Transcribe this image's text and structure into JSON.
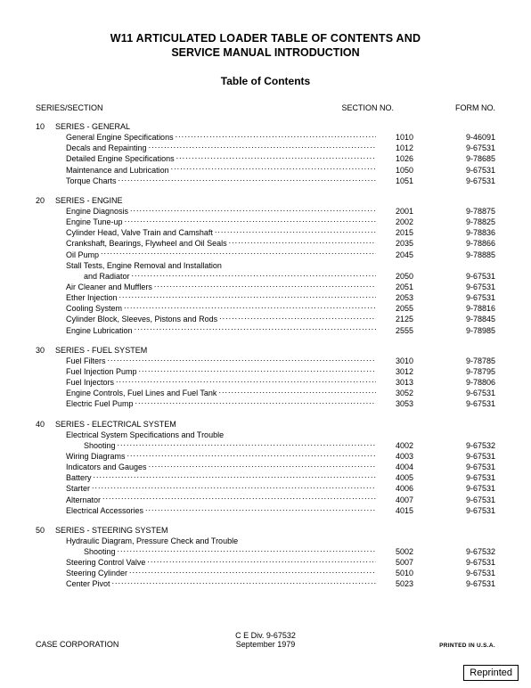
{
  "title_line1": "W11 ARTICULATED LOADER TABLE OF CONTENTS AND",
  "title_line2": "SERVICE MANUAL INTRODUCTION",
  "toc_heading": "Table of Contents",
  "header_left": "SERIES/SECTION",
  "header_mid": "SECTION NO.",
  "header_right": "FORM NO.",
  "series": [
    {
      "num": "10",
      "title": "SERIES - GENERAL",
      "entries": [
        {
          "label": "General Engine Specifications",
          "sect": "1010",
          "form": "9-46091"
        },
        {
          "label": "Decals and Repainting",
          "sect": "1012",
          "form": "9-67531"
        },
        {
          "label": "Detailed Engine Specifications",
          "sect": "1026",
          "form": "9-78685"
        },
        {
          "label": "Maintenance and Lubrication",
          "sect": "1050",
          "form": "9-67531"
        },
        {
          "label": "Torque Charts",
          "sect": "1051",
          "form": "9-67531"
        }
      ]
    },
    {
      "num": "20",
      "title": "SERIES - ENGINE",
      "entries": [
        {
          "label": "Engine Diagnosis",
          "sect": "2001",
          "form": "9-78875"
        },
        {
          "label": "Engine Tune-up",
          "sect": "2002",
          "form": "9-78825"
        },
        {
          "label": "Cylinder Head, Valve Train and Camshaft",
          "sect": "2015",
          "form": "9-78836"
        },
        {
          "label": "Crankshaft, Bearings, Flywheel and Oil Seals",
          "sect": "2035",
          "form": "9-78866"
        },
        {
          "label": "Oil Pump",
          "sect": "2045",
          "form": "9-78885"
        },
        {
          "wrap_top": "Stall Tests, Engine Removal and Installation",
          "wrap_bottom": "and Radiator",
          "sect": "2050",
          "form": "9-67531"
        },
        {
          "label": "Air Cleaner and Mufflers",
          "sect": "2051",
          "form": "9-67531"
        },
        {
          "label": "Ether Injection",
          "sect": "2053",
          "form": "9-67531"
        },
        {
          "label": "Cooling System",
          "sect": "2055",
          "form": "9-78816"
        },
        {
          "label": "Cylinder Block, Sleeves, Pistons and Rods",
          "sect": "2125",
          "form": "9-78845"
        },
        {
          "label": "Engine Lubrication",
          "sect": "2555",
          "form": "9-78985"
        }
      ]
    },
    {
      "num": "30",
      "title": "SERIES - FUEL SYSTEM",
      "entries": [
        {
          "label": "Fuel Filters",
          "sect": "3010",
          "form": "9-78785"
        },
        {
          "label": "Fuel Injection Pump",
          "sect": "3012",
          "form": "9-78795"
        },
        {
          "label": "Fuel Injectors",
          "sect": "3013",
          "form": "9-78806"
        },
        {
          "label": "Engine Controls, Fuel Lines and Fuel Tank",
          "sect": "3052",
          "form": "9-67531"
        },
        {
          "label": "Electric Fuel Pump",
          "sect": "3053",
          "form": "9-67531"
        }
      ]
    },
    {
      "num": "40",
      "title": "SERIES - ELECTRICAL SYSTEM",
      "entries": [
        {
          "wrap_top": "Electrical System Specifications and Trouble",
          "wrap_bottom": "Shooting",
          "sect": "4002",
          "form": "9-67532"
        },
        {
          "label": "Wiring Diagrams",
          "sect": "4003",
          "form": "9-67531"
        },
        {
          "label": "Indicators and Gauges",
          "sect": "4004",
          "form": "9-67531"
        },
        {
          "label": "Battery",
          "sect": "4005",
          "form": "9-67531"
        },
        {
          "label": "Starter",
          "sect": "4006",
          "form": "9-67531"
        },
        {
          "label": "Alternator",
          "sect": "4007",
          "form": "9-67531"
        },
        {
          "label": "Electrical Accessories",
          "sect": "4015",
          "form": "9-67531"
        }
      ]
    },
    {
      "num": "50",
      "title": "SERIES - STEERING SYSTEM",
      "entries": [
        {
          "wrap_top": "Hydraulic Diagram, Pressure Check and Trouble",
          "wrap_bottom": "Shooting",
          "sect": "5002",
          "form": "9-67532"
        },
        {
          "label": "Steering Control Valve",
          "sect": "5007",
          "form": "9-67531"
        },
        {
          "label": "Steering Cylinder",
          "sect": "5010",
          "form": "9-67531"
        },
        {
          "label": "Center Pivot",
          "sect": "5023",
          "form": "9-67531"
        }
      ]
    }
  ],
  "footer_left": "CASE CORPORATION",
  "footer_center1": "C E Div. 9-67532",
  "footer_center2": "September 1979",
  "footer_right": "PRINTED IN U.S.A.",
  "reprinted": "Reprinted"
}
